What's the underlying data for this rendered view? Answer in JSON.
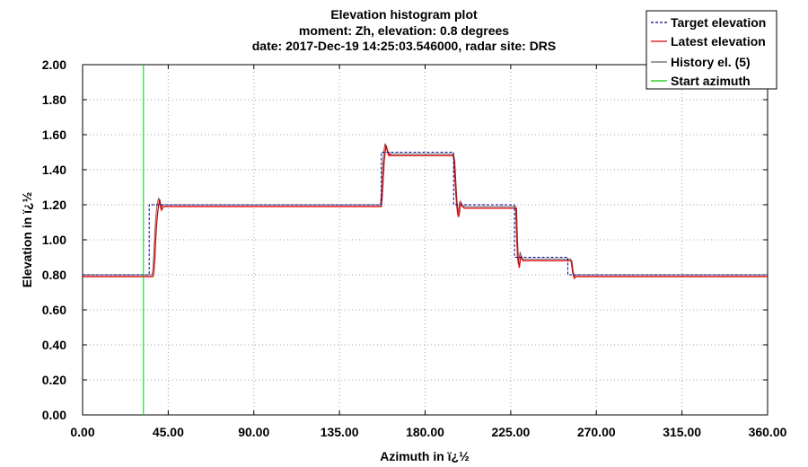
{
  "chart_data": {
    "type": "line",
    "title_lines": [
      "Elevation histogram plot",
      "moment: Zh, elevation: 0.8 degrees",
      "date: 2017-Dec-19 14:25:03.546000, radar site: DRS"
    ],
    "xlabel": "Azimuth in ï¿½",
    "ylabel": "Elevation in ï¿½",
    "xlim": [
      0,
      360
    ],
    "ylim": [
      0,
      2
    ],
    "x_ticks": [
      "0.00",
      "45.00",
      "90.00",
      "135.00",
      "180.00",
      "225.00",
      "270.00",
      "315.00",
      "360.00"
    ],
    "y_ticks": [
      "0.00",
      "0.20",
      "0.40",
      "0.60",
      "0.80",
      "1.00",
      "1.20",
      "1.40",
      "1.60",
      "1.80",
      "2.00"
    ],
    "grid": true,
    "legend_position": "top-right",
    "series": [
      {
        "name": "Target elevation",
        "color": "#00008b",
        "style": "dashed",
        "x": [
          0,
          35,
          35,
          157,
          157,
          195,
          195,
          227,
          227,
          255,
          255,
          360
        ],
        "y": [
          0.8,
          0.8,
          1.2,
          1.2,
          1.5,
          1.5,
          1.2,
          1.2,
          0.9,
          0.9,
          0.8,
          0.8
        ]
      },
      {
        "name": "Latest elevation",
        "color": "#e00000",
        "style": "solid",
        "x": [
          0,
          37,
          37.5,
          38,
          38.5,
          39,
          39.5,
          40,
          40.5,
          41,
          41.5,
          42,
          42.5,
          43,
          157,
          157.5,
          158,
          158.5,
          159,
          159.5,
          160,
          160.5,
          161,
          161.5,
          162,
          162.5,
          195,
          195.5,
          196,
          196.5,
          197,
          197.5,
          198,
          198.5,
          199,
          199.5,
          200,
          200.5,
          201,
          228,
          228.5,
          229,
          229.5,
          230,
          230.5,
          231,
          231.5,
          232,
          232.5,
          233,
          257,
          257.5,
          258,
          258.5,
          259,
          259.5,
          360
        ],
        "y": [
          0.79,
          0.79,
          0.82,
          0.9,
          1.02,
          1.1,
          1.16,
          1.2,
          1.23,
          1.2,
          1.17,
          1.18,
          1.19,
          1.19,
          1.19,
          1.25,
          1.35,
          1.45,
          1.5,
          1.54,
          1.52,
          1.5,
          1.48,
          1.49,
          1.48,
          1.48,
          1.48,
          1.45,
          1.35,
          1.25,
          1.18,
          1.13,
          1.15,
          1.2,
          1.21,
          1.19,
          1.19,
          1.18,
          1.18,
          1.18,
          1.0,
          0.88,
          0.84,
          0.88,
          0.91,
          0.89,
          0.88,
          0.88,
          0.88,
          0.88,
          0.88,
          0.84,
          0.8,
          0.78,
          0.79,
          0.79,
          0.79
        ]
      },
      {
        "name": "History el. (5)",
        "color": "#606060",
        "style": "solid",
        "x": [
          0,
          36.5,
          37,
          37.5,
          38,
          38.5,
          39,
          39.5,
          40,
          40.5,
          41,
          41.5,
          42,
          42.5,
          156.5,
          157,
          157.5,
          158,
          158.5,
          159,
          159.5,
          160,
          160.5,
          161,
          161.5,
          162,
          194.5,
          195,
          195.5,
          196,
          196.5,
          197,
          197.5,
          198,
          198.5,
          199,
          199.5,
          200,
          200.5,
          227.5,
          228,
          228.5,
          229,
          229.5,
          230,
          230.5,
          231,
          231.5,
          232,
          232.5,
          256.5,
          257,
          257.5,
          258,
          258.5,
          259,
          360
        ],
        "y": [
          0.8,
          0.8,
          0.84,
          0.93,
          1.05,
          1.13,
          1.19,
          1.22,
          1.24,
          1.21,
          1.18,
          1.19,
          1.2,
          1.2,
          1.2,
          1.27,
          1.38,
          1.47,
          1.52,
          1.55,
          1.53,
          1.51,
          1.49,
          1.5,
          1.49,
          1.49,
          1.49,
          1.46,
          1.37,
          1.27,
          1.2,
          1.15,
          1.16,
          1.21,
          1.22,
          1.2,
          1.2,
          1.19,
          1.19,
          1.19,
          1.02,
          0.9,
          0.86,
          0.9,
          0.93,
          0.9,
          0.89,
          0.89,
          0.89,
          0.89,
          0.89,
          0.85,
          0.81,
          0.79,
          0.8,
          0.8,
          0.8
        ]
      },
      {
        "name": "Start azimuth",
        "color": "#00c800",
        "style": "solid",
        "x": [
          32,
          32
        ],
        "y": [
          0,
          2
        ]
      }
    ]
  }
}
